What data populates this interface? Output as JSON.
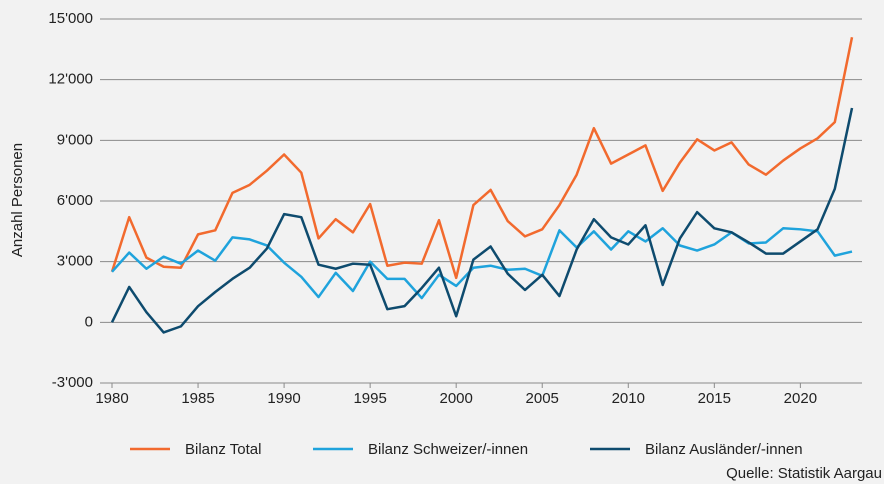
{
  "chart_data": {
    "type": "line",
    "y_label": "Anzahl Personen",
    "source": "Quelle: Statistik Aargau",
    "x": [
      1980,
      1981,
      1982,
      1983,
      1984,
      1985,
      1986,
      1987,
      1988,
      1989,
      1990,
      1991,
      1992,
      1993,
      1994,
      1995,
      1996,
      1997,
      1998,
      1999,
      2000,
      2001,
      2002,
      2003,
      2004,
      2005,
      2006,
      2007,
      2008,
      2009,
      2010,
      2011,
      2012,
      2013,
      2014,
      2015,
      2016,
      2017,
      2018,
      2019,
      2020,
      2021,
      2022,
      2023
    ],
    "series": [
      {
        "name": "Bilanz Total",
        "color": "#f26a2e",
        "values": [
          2500,
          5200,
          3200,
          2750,
          2700,
          4350,
          4550,
          6400,
          6800,
          7500,
          8300,
          7400,
          4150,
          5100,
          4450,
          5850,
          2800,
          2950,
          2900,
          5050,
          2200,
          5800,
          6550,
          5000,
          4250,
          4600,
          5800,
          7300,
          9600,
          7850,
          8300,
          8750,
          6500,
          7900,
          9050,
          8500,
          8900,
          7800,
          7300,
          8000,
          8600,
          9100,
          9900,
          14100
        ]
      },
      {
        "name": "Bilanz Schweizer/-innen",
        "color": "#1fa3dc",
        "values": [
          2500,
          3450,
          2650,
          3250,
          2900,
          3550,
          3050,
          4200,
          4100,
          3800,
          2950,
          2250,
          1250,
          2450,
          1550,
          3000,
          2150,
          2150,
          1200,
          2350,
          1800,
          2700,
          2800,
          2600,
          2650,
          2300,
          4550,
          3700,
          4500,
          3600,
          4500,
          4000,
          4650,
          3800,
          3550,
          3850,
          4450,
          3900,
          3950,
          4650,
          4600,
          4500,
          3300,
          3500
        ]
      },
      {
        "name": "Bilanz Ausländer/-innen",
        "color": "#0e4b6e",
        "values": [
          0,
          1750,
          500,
          -500,
          -200,
          800,
          1500,
          2150,
          2700,
          3650,
          5350,
          5200,
          2850,
          2650,
          2900,
          2850,
          650,
          800,
          1700,
          2700,
          300,
          3100,
          3750,
          2400,
          1600,
          2350,
          1300,
          3600,
          5100,
          4200,
          3850,
          4800,
          1850,
          4150,
          5450,
          4650,
          4450,
          3950,
          3400,
          3400,
          4000,
          4600,
          6600,
          10600
        ]
      }
    ],
    "xlim": [
      1980,
      2023
    ],
    "xticks": [
      1980,
      1985,
      1990,
      1995,
      2000,
      2005,
      2010,
      2015,
      2020
    ],
    "ylim": [
      -3000,
      15000
    ],
    "yticks": [
      {
        "value": -3000,
        "label": "-3'000"
      },
      0,
      {
        "value": 3000,
        "label": "3'000"
      },
      {
        "value": 6000,
        "label": "6'000"
      },
      {
        "value": 9000,
        "label": "9'000"
      },
      {
        "value": 12000,
        "label": "12'000"
      },
      {
        "value": 15000,
        "label": "15'000"
      }
    ],
    "grid": true
  }
}
